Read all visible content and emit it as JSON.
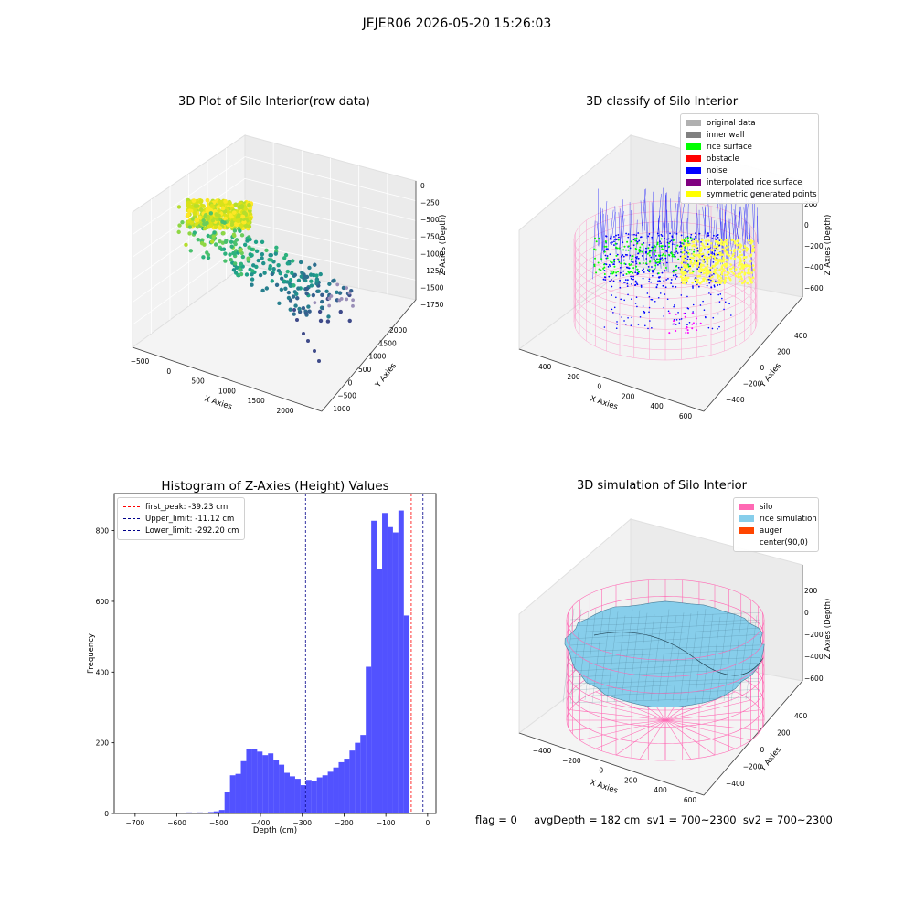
{
  "figure": {
    "suptitle": "JEJER06 2026-05-20 15:26:03",
    "status_line": "flag = 0     avgDepth = 182 cm  sv1 = 700~2300  sv2 = 700~2300"
  },
  "panels": {
    "raw": {
      "title": "3D Plot of Silo Interior(row data)",
      "xlabel": "X Axies",
      "ylabel": "Y Axies",
      "zlabel": "Z Axies (Depth)",
      "xticks": [
        "−500",
        "0",
        "500",
        "1000",
        "1500",
        "2000"
      ],
      "yticks": [
        "−1000",
        "−500",
        "0",
        "500",
        "1000",
        "1500",
        "2000"
      ],
      "zticks": [
        "0",
        "−250",
        "−500",
        "−750",
        "−1000",
        "−1250",
        "−1500",
        "−1750"
      ]
    },
    "classify": {
      "title": "3D classify of Silo Interior",
      "xlabel": "X Axies",
      "ylabel": "Y Axies",
      "zlabel": "Z Axies (Depth)",
      "xticks": [
        "−400",
        "−200",
        "0",
        "200",
        "400",
        "600"
      ],
      "yticks": [
        "−400",
        "−200",
        "0",
        "200",
        "400"
      ],
      "zticks": [
        "200",
        "0",
        "−200",
        "−400",
        "−600"
      ],
      "legend": [
        {
          "label": "original data",
          "color": "#b0b0b0"
        },
        {
          "label": "inner wall",
          "color": "#808080"
        },
        {
          "label": "rice surface",
          "color": "#00ff00"
        },
        {
          "label": "obstacle",
          "color": "#ff0000"
        },
        {
          "label": "noise",
          "color": "#0000ff"
        },
        {
          "label": "interpolated rice surface",
          "color": "#800080"
        },
        {
          "label": "symmetric generated points",
          "color": "#ffff00"
        }
      ]
    },
    "simulation": {
      "title": "3D simulation of Silo Interior",
      "xlabel": "X Axies",
      "ylabel": "Y Axies",
      "zlabel": "Z Axies (Depth)",
      "xticks": [
        "−400",
        "−200",
        "0",
        "200",
        "400",
        "600"
      ],
      "yticks": [
        "−400",
        "−200",
        "0",
        "200",
        "400"
      ],
      "zticks": [
        "200",
        "0",
        "−200",
        "−400",
        "−600"
      ],
      "legend": [
        {
          "label": "silo",
          "color": "#ff69b4"
        },
        {
          "label": "rice simulation",
          "color": "#87ceeb"
        },
        {
          "label": "auger",
          "color": "#ff4500"
        },
        {
          "label": "center(90,0)",
          "color": ""
        }
      ]
    }
  },
  "chart_data": {
    "type": "bar",
    "title": "Histogram of Z-Axies (Height) Values",
    "xlabel": "Depth (cm)",
    "ylabel": "Frequency",
    "xlim": [
      -750,
      20
    ],
    "ylim": [
      0,
      905
    ],
    "xticks": [
      -700,
      -600,
      -500,
      -400,
      -300,
      -200,
      -100,
      0
    ],
    "yticks": [
      0,
      200,
      400,
      600,
      800
    ],
    "bar_color": "#0000ff",
    "bin_width": 13,
    "bins": [
      {
        "x": -590,
        "v": 1
      },
      {
        "x": -577,
        "v": 3
      },
      {
        "x": -564,
        "v": 1
      },
      {
        "x": -551,
        "v": 3
      },
      {
        "x": -538,
        "v": 2
      },
      {
        "x": -525,
        "v": 4
      },
      {
        "x": -512,
        "v": 6
      },
      {
        "x": -499,
        "v": 10
      },
      {
        "x": -486,
        "v": 62
      },
      {
        "x": -473,
        "v": 108
      },
      {
        "x": -460,
        "v": 112
      },
      {
        "x": -447,
        "v": 148
      },
      {
        "x": -434,
        "v": 182
      },
      {
        "x": -421,
        "v": 182
      },
      {
        "x": -408,
        "v": 175
      },
      {
        "x": -395,
        "v": 165
      },
      {
        "x": -382,
        "v": 170
      },
      {
        "x": -369,
        "v": 152
      },
      {
        "x": -356,
        "v": 138
      },
      {
        "x": -343,
        "v": 115
      },
      {
        "x": -330,
        "v": 105
      },
      {
        "x": -317,
        "v": 98
      },
      {
        "x": -304,
        "v": 80
      },
      {
        "x": -291,
        "v": 95
      },
      {
        "x": -278,
        "v": 92
      },
      {
        "x": -265,
        "v": 102
      },
      {
        "x": -252,
        "v": 108
      },
      {
        "x": -239,
        "v": 118
      },
      {
        "x": -226,
        "v": 130
      },
      {
        "x": -213,
        "v": 145
      },
      {
        "x": -200,
        "v": 155
      },
      {
        "x": -187,
        "v": 178
      },
      {
        "x": -174,
        "v": 200
      },
      {
        "x": -161,
        "v": 222
      },
      {
        "x": -148,
        "v": 415
      },
      {
        "x": -135,
        "v": 828
      },
      {
        "x": -122,
        "v": 692
      },
      {
        "x": -109,
        "v": 850
      },
      {
        "x": -96,
        "v": 810
      },
      {
        "x": -83,
        "v": 795
      },
      {
        "x": -70,
        "v": 857
      },
      {
        "x": -57,
        "v": 560
      }
    ],
    "lines": [
      {
        "label": "first_peak: -39.23 cm",
        "x": -39.23,
        "color": "#ff0000"
      },
      {
        "label": "Upper_limit: -11.12 cm",
        "x": -11.12,
        "color": "#00008b"
      },
      {
        "label": "Lower_limit: -292.20 cm",
        "x": -292.2,
        "color": "#00008b"
      }
    ]
  }
}
